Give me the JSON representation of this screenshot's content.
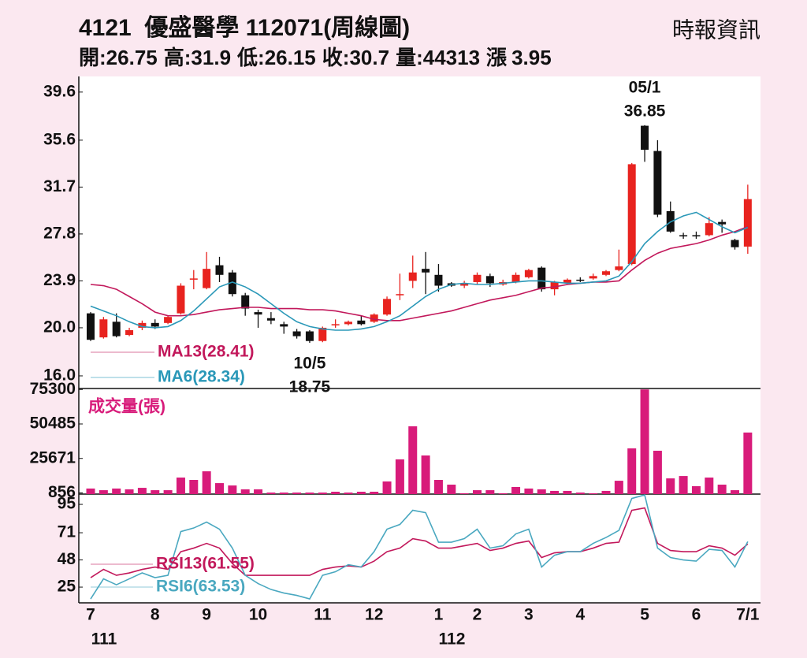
{
  "header": {
    "title": "4121  優盛醫學 112071(周線圖)",
    "source": "時報資訊",
    "quote": [
      {
        "label": "開:",
        "value": 26.75
      },
      {
        "label": "高:",
        "value": 31.9
      },
      {
        "label": "低:",
        "value": 26.15
      },
      {
        "label": "收:",
        "value": 30.7
      },
      {
        "label": "量:",
        "value": 44313
      },
      {
        "label": "漲",
        "value": 3.95
      }
    ]
  },
  "chart_data": [
    {
      "type": "candlestick",
      "categories": [
        "7",
        null,
        null,
        null,
        null,
        "8",
        null,
        null,
        null,
        "9",
        null,
        null,
        null,
        "10",
        null,
        null,
        null,
        null,
        "11",
        null,
        null,
        null,
        "12",
        null,
        null,
        null,
        null,
        "1",
        null,
        null,
        "2",
        null,
        null,
        null,
        "3",
        null,
        null,
        null,
        "4",
        null,
        null,
        null,
        null,
        "5",
        null,
        null,
        null,
        "6",
        null,
        null,
        null,
        "7/1"
      ],
      "x_year_labels": [
        "111",
        null,
        null,
        null,
        null,
        null,
        null,
        null,
        null,
        null,
        null,
        null,
        null,
        null,
        null,
        null,
        null,
        null,
        null,
        null,
        null,
        null,
        null,
        null,
        null,
        null,
        null,
        "112",
        null,
        null,
        null,
        null,
        null,
        null,
        null,
        null,
        null,
        null,
        null,
        null,
        null,
        null,
        null,
        null,
        null,
        null,
        null,
        null,
        null,
        null,
        null,
        null
      ],
      "open": [
        21.2,
        19.2,
        20.5,
        19.4,
        20.0,
        20.4,
        20.4,
        21.2,
        24.0,
        23.3,
        25.2,
        24.6,
        22.7,
        21.3,
        20.8,
        20.3,
        19.7,
        19.7,
        18.9,
        20.2,
        20.3,
        20.6,
        20.5,
        21.1,
        22.7,
        23.9,
        24.9,
        24.4,
        23.7,
        23.5,
        23.8,
        24.3,
        23.6,
        23.8,
        24.2,
        25.0,
        23.2,
        23.7,
        24.0,
        24.1,
        24.4,
        24.8,
        25.3,
        36.8,
        34.7,
        29.7,
        27.7,
        27.7,
        27.7,
        28.8,
        27.3,
        26.75
      ],
      "high": [
        21.3,
        20.9,
        21.2,
        20.0,
        20.6,
        20.7,
        21.0,
        23.7,
        24.8,
        26.3,
        25.9,
        24.8,
        22.9,
        21.5,
        21.3,
        20.5,
        19.9,
        19.8,
        20.1,
        20.7,
        20.6,
        21.0,
        21.2,
        22.6,
        24.5,
        26.0,
        26.3,
        25.3,
        23.8,
        23.9,
        24.6,
        24.5,
        24.0,
        24.6,
        24.9,
        25.1,
        23.9,
        24.1,
        24.2,
        24.5,
        24.8,
        26.5,
        33.7,
        36.85,
        35.6,
        30.5,
        27.9,
        28.0,
        29.2,
        29.0,
        27.4,
        31.9
      ],
      "low": [
        18.9,
        19.1,
        19.2,
        19.3,
        19.8,
        19.9,
        20.3,
        21.1,
        23.2,
        23.2,
        23.8,
        22.6,
        21.0,
        20.0,
        20.3,
        19.5,
        19.1,
        18.75,
        18.8,
        20.0,
        20.2,
        20.2,
        20.4,
        21.0,
        22.3,
        23.3,
        22.8,
        23.0,
        23.4,
        23.3,
        23.6,
        23.4,
        23.5,
        23.7,
        24.1,
        23.0,
        22.7,
        23.6,
        23.8,
        24.0,
        24.3,
        24.7,
        25.2,
        33.8,
        29.2,
        27.9,
        27.4,
        27.4,
        27.6,
        27.9,
        26.5,
        26.15
      ],
      "close": [
        19.0,
        20.7,
        19.3,
        19.8,
        20.4,
        20.1,
        20.9,
        23.5,
        24.1,
        24.9,
        24.4,
        22.8,
        21.6,
        21.1,
        20.6,
        20.1,
        19.3,
        18.9,
        20.0,
        20.3,
        20.5,
        20.3,
        21.1,
        22.4,
        22.8,
        24.6,
        24.6,
        23.5,
        23.5,
        23.7,
        24.4,
        23.7,
        23.8,
        24.4,
        24.8,
        23.2,
        23.8,
        24.0,
        24.0,
        24.3,
        24.7,
        25.1,
        33.6,
        34.8,
        29.4,
        28.0,
        27.6,
        27.6,
        28.7,
        28.6,
        26.7,
        30.7
      ],
      "up_color": "#e8231f",
      "down_color": "#111111",
      "series": [
        {
          "name": "MA13(28.41)",
          "color": "#c2185b",
          "values": [
            23.6,
            23.5,
            23.2,
            22.6,
            22.0,
            21.3,
            21.0,
            21.0,
            21.1,
            21.3,
            21.5,
            21.6,
            21.7,
            21.7,
            21.6,
            21.6,
            21.6,
            21.5,
            21.5,
            21.4,
            21.2,
            21.0,
            20.7,
            20.6,
            20.6,
            20.8,
            21.0,
            21.2,
            21.4,
            21.7,
            22.0,
            22.3,
            22.5,
            22.7,
            23.0,
            23.3,
            23.4,
            23.6,
            23.7,
            23.8,
            23.8,
            23.9,
            24.8,
            25.6,
            26.2,
            26.6,
            26.8,
            27.0,
            27.3,
            27.7,
            28.0,
            28.41
          ]
        },
        {
          "name": "MA6(28.34)",
          "color": "#2a98b8",
          "values": [
            21.8,
            21.4,
            21.0,
            20.5,
            20.1,
            20.0,
            20.1,
            20.6,
            21.4,
            22.4,
            23.4,
            23.8,
            23.4,
            22.8,
            22.0,
            21.2,
            20.5,
            20.1,
            19.9,
            19.8,
            19.8,
            19.9,
            20.1,
            20.5,
            21.0,
            21.8,
            22.6,
            23.2,
            23.6,
            23.7,
            23.6,
            23.6,
            23.7,
            23.8,
            23.9,
            23.9,
            23.8,
            23.7,
            23.7,
            23.8,
            23.9,
            24.3,
            25.5,
            27.0,
            28.0,
            28.8,
            29.3,
            29.6,
            29.0,
            28.4,
            27.9,
            28.34
          ]
        }
      ],
      "annotations": [
        {
          "label": "05/1",
          "at": 43,
          "of": "high"
        },
        {
          "label": "10/5",
          "at": 17,
          "of": "low"
        }
      ],
      "ylim": [
        14.95,
        40.9
      ],
      "yticks": [
        39.6,
        35.6,
        31.7,
        27.8,
        23.9,
        {
          "value": 20,
          "label": "20.0"
        },
        {
          "value": 16,
          "label": "16.0"
        }
      ]
    },
    {
      "type": "bar",
      "series": [
        {
          "name": "成交量(張)",
          "color": "#d81b7a",
          "values": [
            4000,
            2800,
            4000,
            3400,
            4500,
            2800,
            2800,
            11900,
            10200,
            16400,
            7900,
            6200,
            3400,
            3400,
            1100,
            1100,
            1100,
            1100,
            1100,
            1700,
            1100,
            1700,
            1700,
            9100,
            25000,
            48800,
            27800,
            10200,
            6800,
            600,
            2800,
            2800,
            600,
            5100,
            4000,
            3400,
            2300,
            2300,
            1100,
            600,
            2300,
            9600,
            32900,
            75300,
            31200,
            11300,
            13000,
            5700,
            11900,
            6800,
            2800,
            44313
          ]
        }
      ],
      "ylim": [
        0,
        76000
      ],
      "yticks": [
        75300,
        50485,
        25671,
        856
      ]
    },
    {
      "type": "line",
      "series": [
        {
          "name": "RSI13(61.55)",
          "color": "#c2185b",
          "values": [
            33,
            40,
            35,
            37,
            40,
            42,
            40,
            55,
            58,
            62,
            58,
            45,
            35,
            35,
            35,
            35,
            35,
            35,
            40,
            42,
            43,
            42,
            47,
            55,
            58,
            66,
            64,
            58,
            58,
            60,
            62,
            56,
            58,
            62,
            64,
            50,
            54,
            55,
            55,
            58,
            62,
            63,
            90,
            92,
            62,
            56,
            55,
            55,
            60,
            58,
            52,
            61.55
          ]
        },
        {
          "name": "RSI6(63.53)",
          "color": "#4aa8c0",
          "values": [
            15,
            32,
            27,
            32,
            37,
            33,
            35,
            72,
            75,
            80,
            74,
            58,
            35,
            28,
            23,
            20,
            18,
            15,
            35,
            38,
            44,
            42,
            55,
            74,
            78,
            90,
            88,
            63,
            63,
            66,
            74,
            58,
            60,
            70,
            74,
            42,
            52,
            55,
            55,
            62,
            67,
            73,
            100,
            103,
            58,
            50,
            48,
            47,
            57,
            56,
            42,
            63.53
          ]
        }
      ],
      "ylim": [
        11.7,
        103.7
      ],
      "yticks": [
        95,
        71,
        48,
        25
      ]
    }
  ]
}
